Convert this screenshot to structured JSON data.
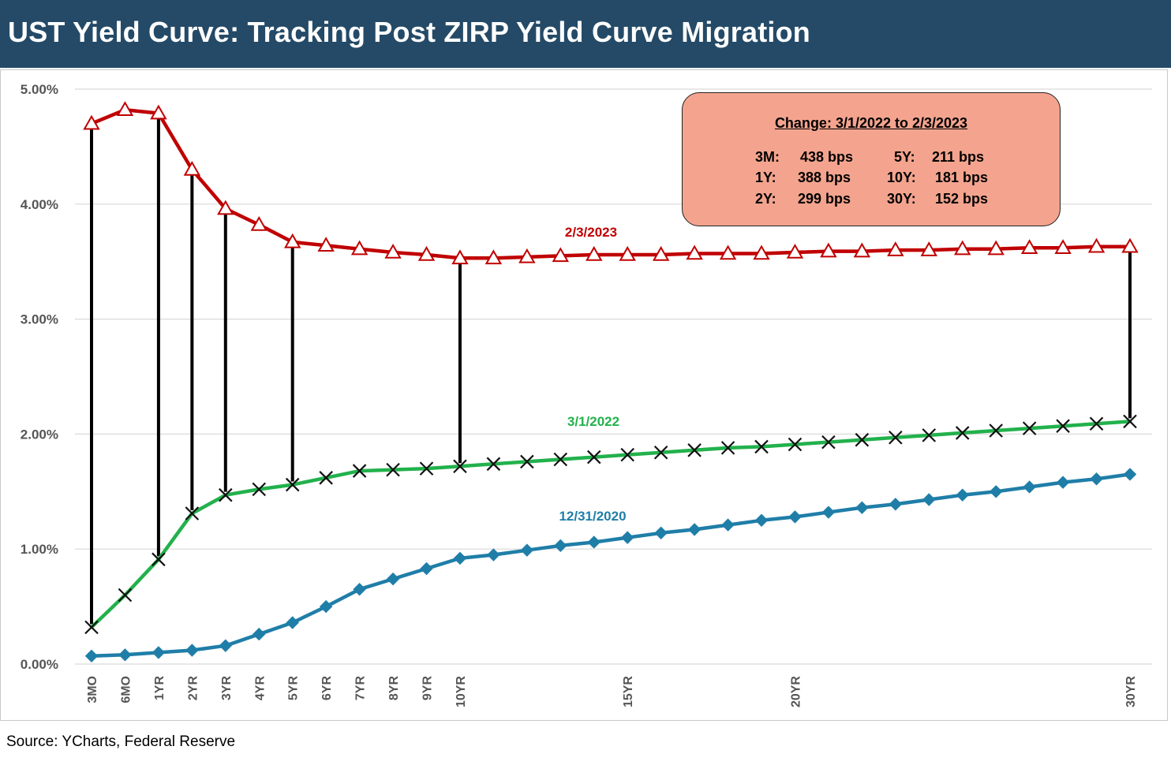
{
  "title": "UST Yield Curve: Tracking Post ZIRP Yield Curve Migration",
  "source": "Source: YCharts, Federal Reserve",
  "change_box": {
    "title": "Change: 3/1/2022 to 2/3/2023",
    "rows": [
      {
        "l_tenor": "3M:",
        "l_value": "438 bps",
        "r_tenor": "5Y:",
        "r_value": "211  bps"
      },
      {
        "l_tenor": "1Y:",
        "l_value": "388 bps",
        "r_tenor": "10Y:",
        "r_value": "181 bps"
      },
      {
        "l_tenor": "2Y:",
        "l_value": "299 bps",
        "r_tenor": "30Y:",
        "r_value": "152 bps"
      }
    ]
  },
  "colors": {
    "title_bar": "#244a67",
    "series_2023": "#c00000",
    "series_2022": "#22b14c",
    "series_2020": "#1f7ea8",
    "connector": "#000000",
    "grid": "#d9d9d9",
    "box_fill": "#f4a48e"
  },
  "chart_data": {
    "type": "line",
    "x_positions": [
      0.25,
      0.5,
      1,
      2,
      3,
      4,
      5,
      6,
      7,
      8,
      9,
      10,
      11,
      12,
      13,
      14,
      15,
      16,
      17,
      18,
      19,
      20,
      21,
      22,
      23,
      24,
      25,
      26,
      27,
      28,
      29,
      30
    ],
    "tick_labels": [
      {
        "x": 0.25,
        "label": "3MO"
      },
      {
        "x": 0.5,
        "label": "6MO"
      },
      {
        "x": 1,
        "label": "1YR"
      },
      {
        "x": 2,
        "label": "2YR"
      },
      {
        "x": 3,
        "label": "3YR"
      },
      {
        "x": 4,
        "label": "4YR"
      },
      {
        "x": 5,
        "label": "5YR"
      },
      {
        "x": 6,
        "label": "6YR"
      },
      {
        "x": 7,
        "label": "7YR"
      },
      {
        "x": 8,
        "label": "8YR"
      },
      {
        "x": 9,
        "label": "9YR"
      },
      {
        "x": 10,
        "label": "10YR"
      },
      {
        "x": 15,
        "label": "15YR"
      },
      {
        "x": 20,
        "label": "20YR"
      },
      {
        "x": 30,
        "label": "30YR"
      }
    ],
    "ylim": [
      0,
      5
    ],
    "yticks": [
      "0.00%",
      "1.00%",
      "2.00%",
      "3.00%",
      "4.00%",
      "5.00%"
    ],
    "grid": "horizontal",
    "series": [
      {
        "name": "2/3/2023",
        "marker": "triangle-open",
        "values": [
          4.7,
          4.82,
          4.79,
          4.3,
          3.96,
          3.82,
          3.67,
          3.64,
          3.61,
          3.58,
          3.56,
          3.53,
          3.53,
          3.54,
          3.55,
          3.56,
          3.56,
          3.56,
          3.57,
          3.57,
          3.57,
          3.58,
          3.59,
          3.59,
          3.6,
          3.6,
          3.61,
          3.61,
          3.62,
          3.62,
          3.63,
          3.63
        ]
      },
      {
        "name": "3/1/2022",
        "marker": "x",
        "values": [
          0.32,
          0.6,
          0.91,
          1.31,
          1.47,
          1.52,
          1.56,
          1.62,
          1.68,
          1.69,
          1.7,
          1.72,
          1.74,
          1.76,
          1.78,
          1.8,
          1.82,
          1.84,
          1.86,
          1.88,
          1.89,
          1.91,
          1.93,
          1.95,
          1.97,
          1.99,
          2.01,
          2.03,
          2.05,
          2.07,
          2.09,
          2.11
        ]
      },
      {
        "name": "12/31/2020",
        "marker": "diamond",
        "values": [
          0.07,
          0.08,
          0.1,
          0.12,
          0.16,
          0.26,
          0.36,
          0.5,
          0.65,
          0.74,
          0.83,
          0.92,
          0.95,
          0.99,
          1.03,
          1.06,
          1.1,
          1.14,
          1.17,
          1.21,
          1.25,
          1.28,
          1.32,
          1.36,
          1.39,
          1.43,
          1.47,
          1.5,
          1.54,
          1.58,
          1.61,
          1.65
        ]
      }
    ],
    "connectors_at": [
      0.25,
      1,
      2,
      3,
      5,
      10,
      30
    ]
  }
}
